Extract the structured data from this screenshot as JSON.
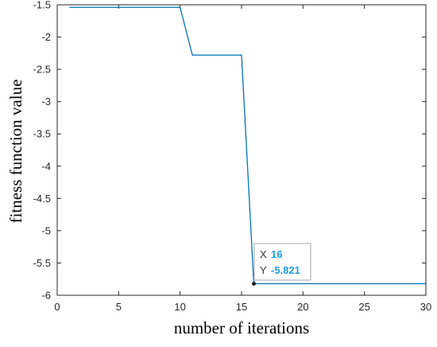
{
  "chart_data": {
    "type": "line",
    "title": "",
    "xlabel": "number of iterations",
    "ylabel": "fitness function value",
    "xlim": [
      0,
      30
    ],
    "ylim": [
      -6,
      -1.5
    ],
    "xticks": [
      0,
      5,
      10,
      15,
      20,
      25,
      30
    ],
    "xtick_labels": [
      "0",
      "5",
      "10",
      "15",
      "20",
      "25",
      "30"
    ],
    "yticks": [
      -1.5,
      -2,
      -2.5,
      -3,
      -3.5,
      -4,
      -4.5,
      -5,
      -5.5,
      -6
    ],
    "ytick_labels": [
      "-1.5",
      "-2",
      "-2.5",
      "-3",
      "-3.5",
      "-4",
      "-4.5",
      "-5",
      "-5.5",
      "-6"
    ],
    "grid": false,
    "series": [
      {
        "color": "#0072BD",
        "x": [
          1,
          10,
          11,
          15,
          16,
          30
        ],
        "y": [
          -1.54,
          -1.54,
          -2.28,
          -2.28,
          -5.821,
          -5.821
        ]
      }
    ],
    "datatip": {
      "x_label": "X",
      "x_value": "16",
      "y_label": "Y",
      "y_value": "-5.821",
      "value_color": "#1f9bde",
      "point_x": 16,
      "point_y": -5.821
    }
  }
}
